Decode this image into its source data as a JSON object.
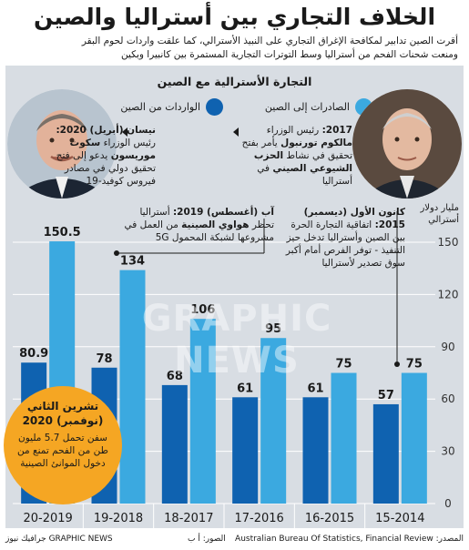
{
  "header": {
    "title": "الخلاف التجاري بين أستراليا والصين",
    "subtitle_line1": "أقرت الصين تدابير لمكافحة الإغراق التجاري على النبيذ الأسترالي، كما علقت واردات لحوم البقر",
    "subtitle_line2": "ومنعت شحنات الفحم من أستراليا وسط التوترات التجارية المستمرة بين كانبيرا وبكين"
  },
  "section_title": "التجارة الأسترالية مع الصين",
  "annotations": {
    "a2017": {
      "date": "2017:",
      "text1": " رئيس الوزراء",
      "name": "مالكوم تورنبول",
      "text2": " يأمر بفتح تحقيق في نشاط",
      "party": "الحزب الشيوعي الصيني",
      "text3": " في أستراليا"
    },
    "a2020": {
      "date": "نيسان (أبريل) 2020:",
      "text1": "رئيس الوزراء ",
      "name": "سكوت موريسون",
      "text2": " يدعو إلى فتح تحقيق دولي في مصادر فيروس كوفيد-19"
    },
    "a2015": {
      "date": "كانون الأول (ديسمبر) 2015:",
      "text": " اتفاقية التجارة الحرة بين الصين وأستراليا تدخل حيز التنفيذ - توفر الفرص أمام أكبر سوق تصدير لأستراليا"
    },
    "a2019": {
      "date": "آب (أغسطس) 2019:",
      "text1": " أستراليا تحظر ",
      "company": "هواوي الصينية",
      "text2": " من العمل في مشروعها لشبكة المحمول 5G"
    },
    "a2020b": {
      "date": "تشرين الثاني (نوفمبر) 2020",
      "text": "سفن تحمل 5.7 مليون طن من الفحم تمنع من دخول الموانئ الصينية"
    }
  },
  "watermark": "GRAPHIC NEWS",
  "footer": {
    "source_label": "المصدر:",
    "source": "Australian Bureau Of Statistics, Financial Review",
    "photos": "الصور: أ ب",
    "brand": "GRAPHIC NEWS جرافيك نيوز"
  },
  "colors": {
    "exports": "#3ba9e0",
    "imports": "#0f62b0",
    "panel": "#d8dde3",
    "circle": "#f5a623"
  },
  "chart_data": {
    "type": "bar",
    "categories": [
      "15-2014",
      "16-2015",
      "17-2016",
      "18-2017",
      "19-2018",
      "20-2019"
    ],
    "series": [
      {
        "name": "الصادرات إلى الصين",
        "values": [
          75,
          75,
          95,
          106,
          134,
          150.5
        ]
      },
      {
        "name": "الواردات من الصين",
        "values": [
          57,
          61,
          61,
          68,
          78,
          80.9
        ]
      }
    ],
    "ylabel": "مليار دولار أسترالي",
    "ylim": [
      0,
      150
    ],
    "yticks": [
      0,
      30,
      60,
      90,
      120,
      150
    ],
    "grid": true,
    "category_order": "right-to-left",
    "legend_position": "top"
  }
}
